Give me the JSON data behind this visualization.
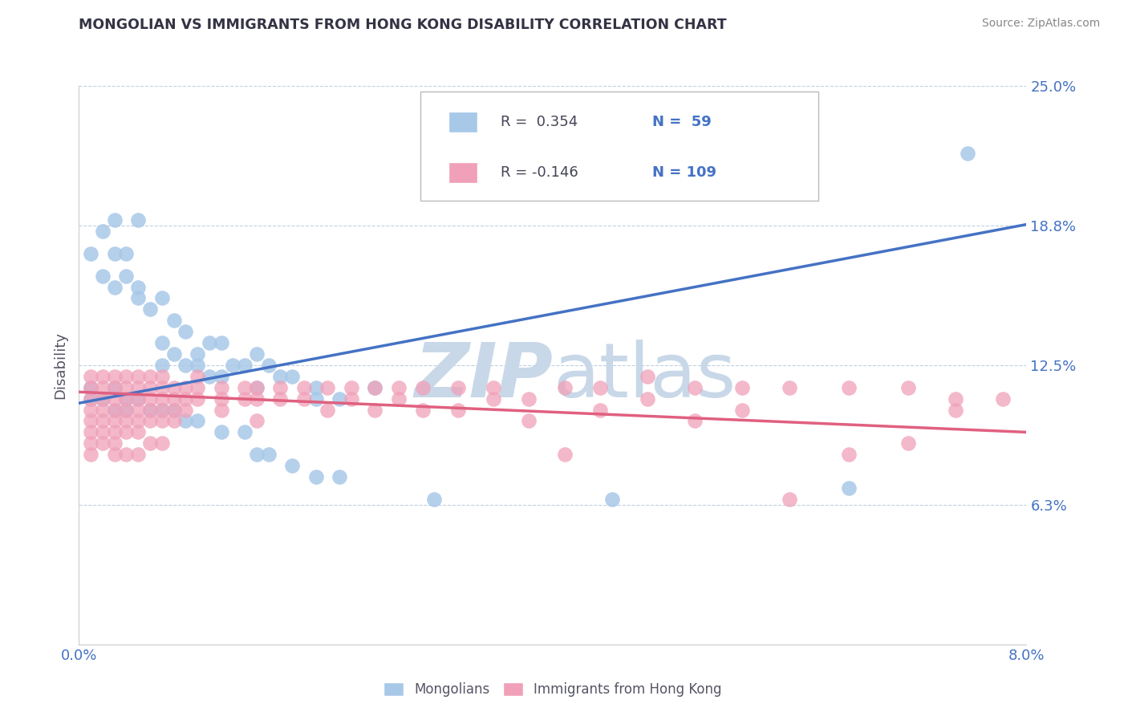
{
  "title": "MONGOLIAN VS IMMIGRANTS FROM HONG KONG DISABILITY CORRELATION CHART",
  "source_text": "Source: ZipAtlas.com",
  "ylabel": "Disability",
  "xmin": 0.0,
  "xmax": 0.08,
  "ymin": 0.0,
  "ymax": 0.25,
  "yticks": [
    0.0,
    0.0625,
    0.125,
    0.1875,
    0.25
  ],
  "ytick_labels": [
    "",
    "6.3%",
    "12.5%",
    "18.8%",
    "25.0%"
  ],
  "color_mongolian": "#a8c8e8",
  "color_hk": "#f0a0b8",
  "color_line_mongolian": "#4472c4",
  "color_line_hk": "#e06080",
  "watermark_color": "#c8d8e8",
  "title_color": "#333344",
  "axis_label_color": "#4472c4",
  "ylabel_color": "#555566",
  "line_mongolian": [
    [
      0.0,
      0.108
    ],
    [
      0.08,
      0.188
    ]
  ],
  "line_hk": [
    [
      0.0,
      0.113
    ],
    [
      0.08,
      0.095
    ]
  ],
  "legend_r1_text": "R =  0.354",
  "legend_n1_text": "N =  59",
  "legend_r2_text": "R = -0.146",
  "legend_n2_text": "N = 109",
  "scatter_mongolian": [
    [
      0.001,
      0.175
    ],
    [
      0.002,
      0.185
    ],
    [
      0.002,
      0.165
    ],
    [
      0.003,
      0.19
    ],
    [
      0.003,
      0.175
    ],
    [
      0.003,
      0.16
    ],
    [
      0.004,
      0.175
    ],
    [
      0.004,
      0.165
    ],
    [
      0.005,
      0.19
    ],
    [
      0.005,
      0.16
    ],
    [
      0.005,
      0.155
    ],
    [
      0.006,
      0.15
    ],
    [
      0.007,
      0.155
    ],
    [
      0.007,
      0.135
    ],
    [
      0.007,
      0.125
    ],
    [
      0.008,
      0.145
    ],
    [
      0.008,
      0.13
    ],
    [
      0.009,
      0.14
    ],
    [
      0.009,
      0.125
    ],
    [
      0.01,
      0.13
    ],
    [
      0.01,
      0.125
    ],
    [
      0.011,
      0.135
    ],
    [
      0.011,
      0.12
    ],
    [
      0.012,
      0.135
    ],
    [
      0.012,
      0.12
    ],
    [
      0.013,
      0.125
    ],
    [
      0.014,
      0.125
    ],
    [
      0.015,
      0.13
    ],
    [
      0.015,
      0.115
    ],
    [
      0.016,
      0.125
    ],
    [
      0.017,
      0.12
    ],
    [
      0.018,
      0.12
    ],
    [
      0.02,
      0.115
    ],
    [
      0.02,
      0.11
    ],
    [
      0.022,
      0.11
    ],
    [
      0.025,
      0.115
    ],
    [
      0.001,
      0.115
    ],
    [
      0.001,
      0.11
    ],
    [
      0.002,
      0.11
    ],
    [
      0.003,
      0.115
    ],
    [
      0.003,
      0.105
    ],
    [
      0.004,
      0.11
    ],
    [
      0.004,
      0.105
    ],
    [
      0.005,
      0.11
    ],
    [
      0.006,
      0.105
    ],
    [
      0.007,
      0.105
    ],
    [
      0.008,
      0.105
    ],
    [
      0.009,
      0.1
    ],
    [
      0.01,
      0.1
    ],
    [
      0.012,
      0.095
    ],
    [
      0.014,
      0.095
    ],
    [
      0.015,
      0.085
    ],
    [
      0.016,
      0.085
    ],
    [
      0.018,
      0.08
    ],
    [
      0.02,
      0.075
    ],
    [
      0.022,
      0.075
    ],
    [
      0.03,
      0.065
    ],
    [
      0.045,
      0.065
    ],
    [
      0.065,
      0.07
    ],
    [
      0.075,
      0.22
    ]
  ],
  "scatter_hk": [
    [
      0.001,
      0.12
    ],
    [
      0.001,
      0.115
    ],
    [
      0.001,
      0.11
    ],
    [
      0.001,
      0.105
    ],
    [
      0.001,
      0.1
    ],
    [
      0.001,
      0.095
    ],
    [
      0.001,
      0.09
    ],
    [
      0.001,
      0.085
    ],
    [
      0.002,
      0.12
    ],
    [
      0.002,
      0.115
    ],
    [
      0.002,
      0.11
    ],
    [
      0.002,
      0.105
    ],
    [
      0.002,
      0.1
    ],
    [
      0.002,
      0.095
    ],
    [
      0.002,
      0.09
    ],
    [
      0.003,
      0.12
    ],
    [
      0.003,
      0.115
    ],
    [
      0.003,
      0.11
    ],
    [
      0.003,
      0.105
    ],
    [
      0.003,
      0.1
    ],
    [
      0.003,
      0.095
    ],
    [
      0.003,
      0.09
    ],
    [
      0.003,
      0.085
    ],
    [
      0.004,
      0.12
    ],
    [
      0.004,
      0.115
    ],
    [
      0.004,
      0.11
    ],
    [
      0.004,
      0.105
    ],
    [
      0.004,
      0.1
    ],
    [
      0.004,
      0.095
    ],
    [
      0.004,
      0.085
    ],
    [
      0.005,
      0.12
    ],
    [
      0.005,
      0.115
    ],
    [
      0.005,
      0.11
    ],
    [
      0.005,
      0.105
    ],
    [
      0.005,
      0.1
    ],
    [
      0.005,
      0.095
    ],
    [
      0.005,
      0.085
    ],
    [
      0.006,
      0.12
    ],
    [
      0.006,
      0.115
    ],
    [
      0.006,
      0.11
    ],
    [
      0.006,
      0.105
    ],
    [
      0.006,
      0.1
    ],
    [
      0.006,
      0.09
    ],
    [
      0.007,
      0.12
    ],
    [
      0.007,
      0.115
    ],
    [
      0.007,
      0.11
    ],
    [
      0.007,
      0.105
    ],
    [
      0.007,
      0.1
    ],
    [
      0.007,
      0.09
    ],
    [
      0.008,
      0.115
    ],
    [
      0.008,
      0.11
    ],
    [
      0.008,
      0.105
    ],
    [
      0.008,
      0.1
    ],
    [
      0.009,
      0.115
    ],
    [
      0.009,
      0.11
    ],
    [
      0.009,
      0.105
    ],
    [
      0.01,
      0.12
    ],
    [
      0.01,
      0.115
    ],
    [
      0.01,
      0.11
    ],
    [
      0.012,
      0.115
    ],
    [
      0.012,
      0.11
    ],
    [
      0.012,
      0.105
    ],
    [
      0.014,
      0.115
    ],
    [
      0.014,
      0.11
    ],
    [
      0.015,
      0.115
    ],
    [
      0.015,
      0.11
    ],
    [
      0.015,
      0.1
    ],
    [
      0.017,
      0.115
    ],
    [
      0.017,
      0.11
    ],
    [
      0.019,
      0.115
    ],
    [
      0.019,
      0.11
    ],
    [
      0.021,
      0.115
    ],
    [
      0.021,
      0.105
    ],
    [
      0.023,
      0.115
    ],
    [
      0.023,
      0.11
    ],
    [
      0.025,
      0.115
    ],
    [
      0.025,
      0.105
    ],
    [
      0.027,
      0.115
    ],
    [
      0.027,
      0.11
    ],
    [
      0.029,
      0.115
    ],
    [
      0.029,
      0.105
    ],
    [
      0.032,
      0.115
    ],
    [
      0.032,
      0.105
    ],
    [
      0.035,
      0.115
    ],
    [
      0.035,
      0.11
    ],
    [
      0.038,
      0.11
    ],
    [
      0.038,
      0.1
    ],
    [
      0.041,
      0.115
    ],
    [
      0.041,
      0.085
    ],
    [
      0.044,
      0.115
    ],
    [
      0.044,
      0.105
    ],
    [
      0.048,
      0.12
    ],
    [
      0.048,
      0.11
    ],
    [
      0.052,
      0.115
    ],
    [
      0.052,
      0.1
    ],
    [
      0.056,
      0.115
    ],
    [
      0.056,
      0.105
    ],
    [
      0.06,
      0.115
    ],
    [
      0.06,
      0.065
    ],
    [
      0.065,
      0.115
    ],
    [
      0.065,
      0.085
    ],
    [
      0.07,
      0.115
    ],
    [
      0.07,
      0.09
    ],
    [
      0.074,
      0.11
    ],
    [
      0.074,
      0.105
    ],
    [
      0.078,
      0.11
    ]
  ]
}
